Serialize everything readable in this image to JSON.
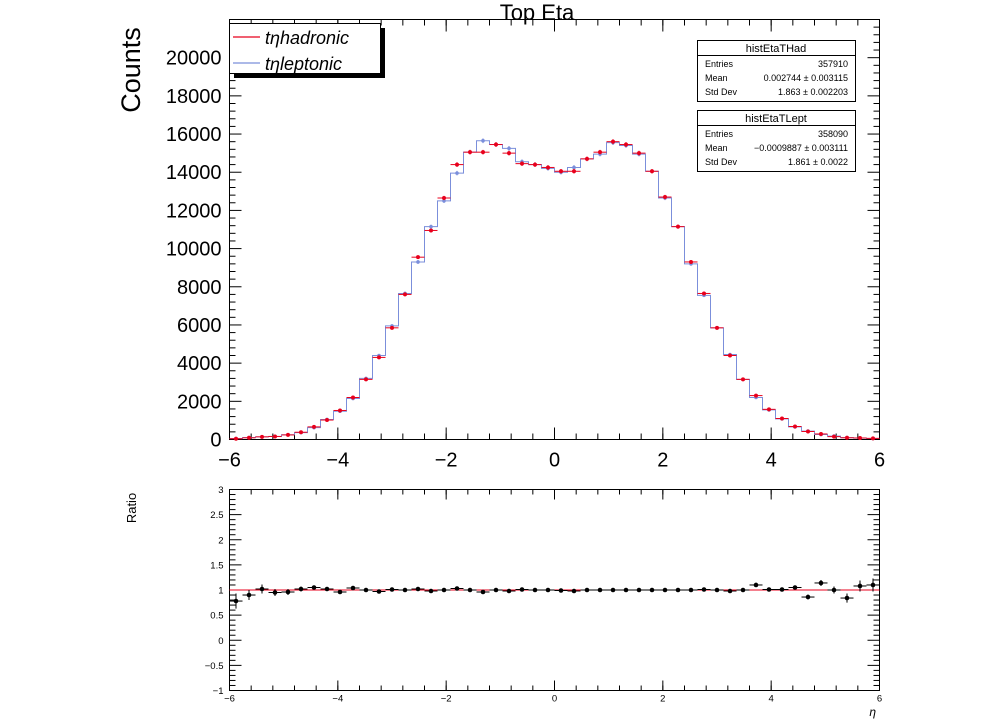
{
  "chart_data": [
    {
      "type": "histogram",
      "title": "Top Eta",
      "ylabel": "Counts",
      "xlim": [
        -6,
        6
      ],
      "ylim": [
        0,
        22000
      ],
      "x_ticks": [
        -6,
        -4,
        -2,
        0,
        2,
        4,
        6
      ],
      "x_tick_labels": [
        "−6",
        "−4",
        "−2",
        "0",
        "2",
        "4",
        "6"
      ],
      "y_ticks": [
        0,
        2000,
        4000,
        6000,
        8000,
        10000,
        12000,
        14000,
        16000,
        18000,
        20000
      ],
      "y_tick_labels": [
        "0",
        "2000",
        "4000",
        "6000",
        "8000",
        "10000",
        "12000",
        "14000",
        "16000",
        "18000",
        "20000"
      ],
      "bin_width": 0.24,
      "x": [
        -5.88,
        -5.64,
        -5.4,
        -5.16,
        -4.92,
        -4.68,
        -4.44,
        -4.2,
        -3.96,
        -3.72,
        -3.48,
        -3.24,
        -3.0,
        -2.76,
        -2.52,
        -2.28,
        -2.04,
        -1.8,
        -1.56,
        -1.32,
        -1.08,
        -0.84,
        -0.6,
        -0.36,
        -0.12,
        0.12,
        0.36,
        0.6,
        0.84,
        1.08,
        1.32,
        1.56,
        1.8,
        2.04,
        2.28,
        2.52,
        2.76,
        3.0,
        3.24,
        3.48,
        3.72,
        3.96,
        4.2,
        4.44,
        4.68,
        4.92,
        5.16,
        5.4,
        5.64,
        5.88
      ],
      "legend": {
        "position": "top-left",
        "entries": [
          "tηhadronic",
          "tηleptonic"
        ]
      },
      "series": [
        {
          "name": "tηhadronic",
          "color": "#e8001c",
          "style": "points-with-errors",
          "values": [
            40,
            90,
            140,
            160,
            240,
            380,
            660,
            1020,
            1520,
            2200,
            3150,
            4300,
            5850,
            7600,
            9550,
            10950,
            12650,
            14400,
            15050,
            15050,
            15450,
            15000,
            14450,
            14400,
            14250,
            14050,
            14050,
            14700,
            15050,
            15600,
            15450,
            15000,
            14050,
            12700,
            11150,
            9300,
            7650,
            5850,
            4400,
            3150,
            2300,
            1580,
            1100,
            680,
            420,
            290,
            150,
            90,
            80,
            60
          ]
        },
        {
          "name": "tηleptonic",
          "color": "#7b8fdb",
          "style": "step-line",
          "values": [
            50,
            100,
            140,
            160,
            250,
            360,
            620,
            1050,
            1480,
            2150,
            3200,
            4400,
            5950,
            7650,
            9300,
            11150,
            12500,
            13950,
            15050,
            15650,
            15450,
            15250,
            14550,
            14400,
            14200,
            14000,
            14250,
            14700,
            14950,
            15550,
            15400,
            14950,
            14050,
            12650,
            11150,
            9200,
            7550,
            5850,
            4450,
            3150,
            2200,
            1550,
            1080,
            660,
            440,
            260,
            180,
            100,
            70,
            55
          ]
        }
      ],
      "stats_boxes": [
        {
          "title": "histEtaTHad",
          "rows": [
            {
              "label": "Entries",
              "value": "357910"
            },
            {
              "label": "Mean",
              "value": "0.002744 ± 0.003115"
            },
            {
              "label": "Std Dev",
              "value": "1.863 ± 0.002203"
            }
          ]
        },
        {
          "title": "histEtaTLept",
          "rows": [
            {
              "label": "Entries",
              "value": "358090"
            },
            {
              "label": "Mean",
              "value": "−0.0009887 ± 0.003111"
            },
            {
              "label": "Std Dev",
              "value": "1.861 ± 0.0022"
            }
          ]
        }
      ]
    },
    {
      "type": "scatter",
      "xlabel": "η",
      "ylabel": "Ratio",
      "xlim": [
        -6,
        6
      ],
      "ylim": [
        -1,
        3
      ],
      "x_ticks": [
        -6,
        -4,
        -2,
        0,
        2,
        4,
        6
      ],
      "x_tick_labels": [
        "−6",
        "−4",
        "−2",
        "0",
        "2",
        "4",
        "6"
      ],
      "y_ticks": [
        -1,
        -0.5,
        0,
        0.5,
        1,
        1.5,
        2,
        2.5,
        3
      ],
      "y_tick_labels": [
        "−1",
        "−0.5",
        "0",
        "0.5",
        "1",
        "1.5",
        "2",
        "2.5",
        "3"
      ],
      "reference_line": {
        "y": 1,
        "color": "#e8001c"
      },
      "marker_color": "#000000",
      "x": [
        -5.88,
        -5.64,
        -5.4,
        -5.16,
        -4.92,
        -4.68,
        -4.44,
        -4.2,
        -3.96,
        -3.72,
        -3.48,
        -3.24,
        -3.0,
        -2.76,
        -2.52,
        -2.28,
        -2.04,
        -1.8,
        -1.56,
        -1.32,
        -1.08,
        -0.84,
        -0.6,
        -0.36,
        -0.12,
        0.12,
        0.36,
        0.6,
        0.84,
        1.08,
        1.32,
        1.56,
        1.8,
        2.04,
        2.28,
        2.52,
        2.76,
        3.0,
        3.24,
        3.48,
        3.72,
        3.96,
        4.2,
        4.44,
        4.68,
        4.92,
        5.16,
        5.4,
        5.64,
        5.88
      ],
      "values": [
        0.78,
        0.9,
        1.02,
        0.95,
        0.96,
        1.02,
        1.05,
        1.02,
        0.96,
        1.04,
        1.0,
        0.97,
        1.01,
        1.0,
        1.02,
        0.98,
        1.0,
        1.03,
        1.0,
        0.96,
        1.0,
        0.98,
        1.01,
        1.0,
        1.0,
        0.99,
        0.98,
        1.0,
        1.0,
        1.0,
        1.0,
        1.0,
        1.0,
        1.0,
        1.0,
        1.0,
        1.01,
        1.0,
        0.98,
        1.0,
        1.1,
        1.01,
        1.01,
        1.05,
        0.86,
        1.14,
        1.0,
        0.84,
        1.08,
        1.1
      ],
      "errors": [
        0.15,
        0.1,
        0.09,
        0.07,
        0.06,
        0.05,
        0.04,
        0.03,
        0.03,
        0.02,
        0.02,
        0.02,
        0.02,
        0.015,
        0.015,
        0.015,
        0.015,
        0.015,
        0.015,
        0.015,
        0.015,
        0.015,
        0.015,
        0.015,
        0.015,
        0.015,
        0.015,
        0.015,
        0.015,
        0.015,
        0.015,
        0.015,
        0.015,
        0.015,
        0.015,
        0.015,
        0.015,
        0.02,
        0.02,
        0.02,
        0.025,
        0.03,
        0.035,
        0.04,
        0.05,
        0.06,
        0.07,
        0.09,
        0.11,
        0.13
      ]
    }
  ]
}
